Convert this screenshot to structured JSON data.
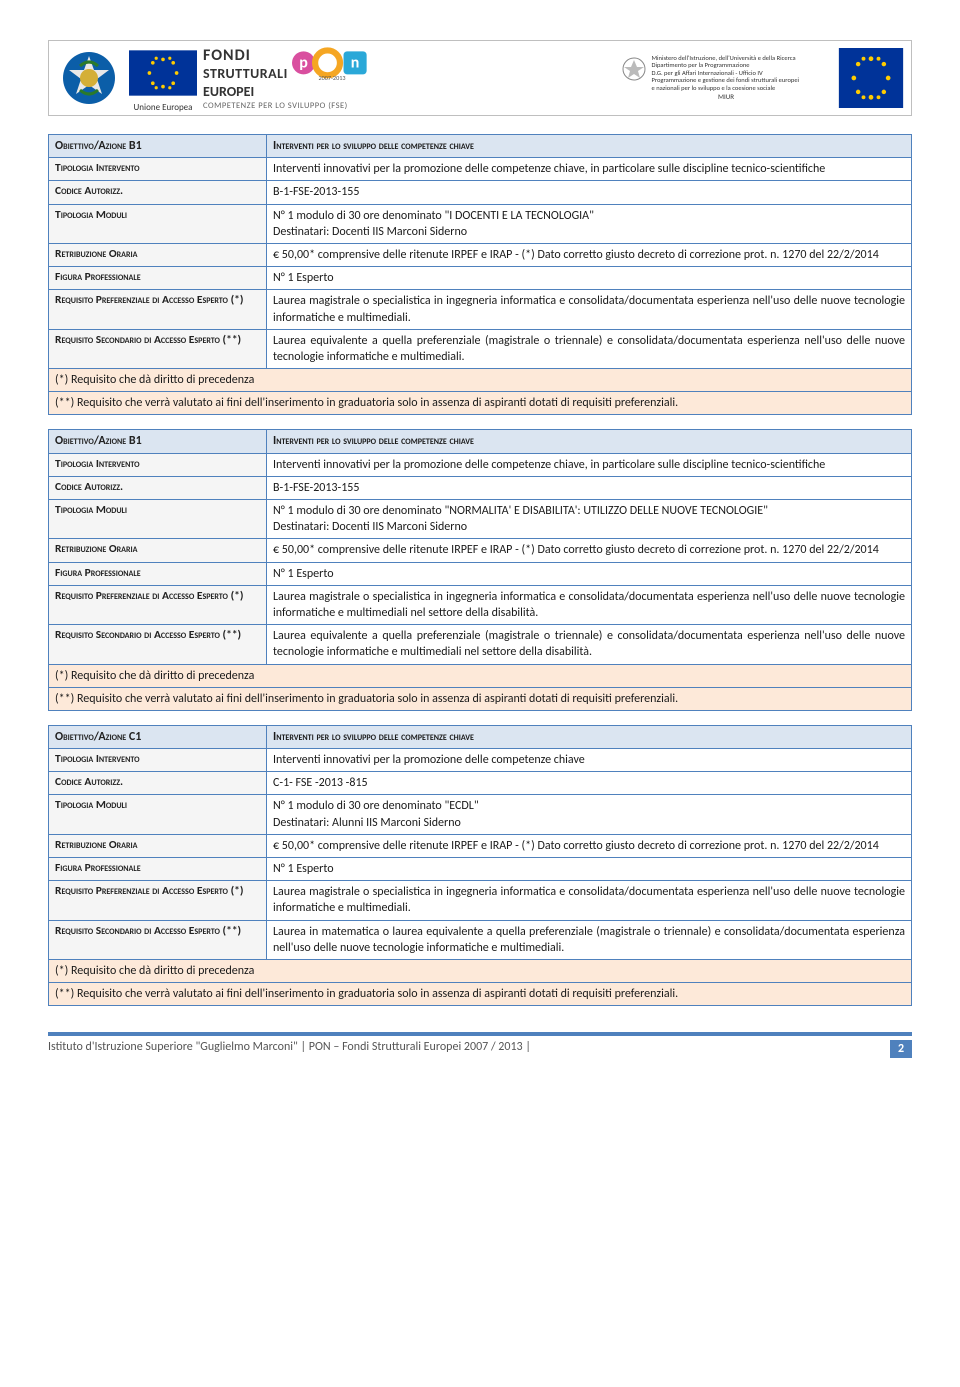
{
  "banner": {
    "eu_label": "Unione Europea",
    "fondi": "FONDI",
    "strutturali": "STRUTTURALI",
    "europei": "EUROPEI",
    "years": "2007-2013",
    "competenze": "COMPETENZE PER LO SVILUPPO (FSE)",
    "miur_line": "MIUR",
    "miur_block": "Ministero dell'Istruzione, dell'Università e della Ricerca\nDipartimento per la Programmazione\nD.G. per gli Affari Internazionali - Ufficio IV\nProgrammazione e gestione dei fondi strutturali europei\ne nazionali per lo sviluppo e la coesione sociale"
  },
  "tables": [
    {
      "title_label": "Obiettivo/Azione B1",
      "title_value": "Interventi per lo sviluppo delle competenze chiave",
      "rows": [
        {
          "label": "Tipologia Intervento",
          "value": "Interventi innovativi per la promozione delle competenze chiave, in particolare sulle discipline tecnico-scientifiche"
        },
        {
          "label": "Codice Autorizz.",
          "value": "B-1-FSE-2013-155"
        },
        {
          "label": "Tipologia Moduli",
          "value": "N° 1 modulo di 30 ore denominato  \"I DOCENTI E LA TECNOLOGIA\"\nDestinatari: Docenti IIS Marconi Siderno"
        },
        {
          "label": "Retribuzione Oraria",
          "value": "€ 50,00* comprensive delle ritenute IRPEF e IRAP - (*) Dato corretto giusto decreto di correzione prot. n. 1270 del  22/2/2014"
        },
        {
          "label": "Figura Professionale",
          "value": "N° 1 Esperto"
        },
        {
          "label": "Requisito Preferenziale di Accesso Esperto (*)",
          "value": "Laurea magistrale o specialistica in ingegneria informatica e consolidata/documentata esperienza nell'uso  delle nuove tecnologie informatiche e multimediali."
        },
        {
          "label": "Requisito Secondario di Accesso Esperto (**)",
          "value": "Laurea equivalente a quella preferenziale (magistrale o triennale) e consolidata/documentata esperienza nell'uso  delle nuove tecnologie informatiche e multimediali."
        }
      ],
      "foot1": "(*)      Requisito che dà diritto di precedenza",
      "foot2": "(**)    Requisito che verrà valutato ai fini dell'inserimento in graduatoria solo in assenza di aspiranti dotati di requisiti preferenziali."
    },
    {
      "title_label": "Obiettivo/Azione B1",
      "title_value": "Interventi per lo sviluppo delle competenze chiave",
      "rows": [
        {
          "label": "Tipologia Intervento",
          "value": "Interventi innovativi per la promozione delle competenze chiave, in particolare sulle discipline tecnico-scientifiche"
        },
        {
          "label": "Codice Autorizz.",
          "value": "B-1-FSE-2013-155"
        },
        {
          "label": "Tipologia Moduli",
          "value": "N° 1 modulo di 30 ore denominato  \"NORMALITA' E DISABILITA': UTILIZZO DELLE NUOVE TECNOLOGIE\"\nDestinatari: Docenti IIS Marconi Siderno"
        },
        {
          "label": "Retribuzione Oraria",
          "value": "€ 50,00* comprensive delle ritenute IRPEF e IRAP - (*) Dato corretto giusto decreto di correzione prot. n. 1270 del  22/2/2014"
        },
        {
          "label": "Figura Professionale",
          "value": "N° 1 Esperto"
        },
        {
          "label": "Requisito Preferenziale di Accesso Esperto (*)",
          "value": "Laurea magistrale o specialistica in ingegneria informatica e consolidata/documentata esperienza nell'uso  delle nuove tecnologie informatiche e multimediali nel settore della disabilità."
        },
        {
          "label": "Requisito Secondario di Accesso Esperto (**)",
          "value": "Laurea equivalente a quella preferenziale (magistrale o triennale) e consolidata/documentata esperienza nell'uso  delle nuove tecnologie informatiche e multimediali nel settore della disabilità."
        }
      ],
      "foot1": "(*)      Requisito che dà diritto di precedenza",
      "foot2": "(**)    Requisito che verrà valutato ai fini dell'inserimento in graduatoria solo in assenza di aspiranti dotati di requisiti preferenziali."
    },
    {
      "title_label": "Obiettivo/Azione C1",
      "title_value": "Interventi per lo sviluppo delle competenze chiave",
      "rows": [
        {
          "label": "Tipologia Intervento",
          "value": "Interventi innovativi per la promozione delle competenze chiave"
        },
        {
          "label": "Codice Autorizz.",
          "value": "C-1- FSE -2013 -815"
        },
        {
          "label": "Tipologia Moduli",
          "value": "N° 1 modulo di 30 ore denominato  \"ECDL\"\nDestinatari: Alunni IIS Marconi Siderno"
        },
        {
          "label": "Retribuzione Oraria",
          "value": "€ 50,00* comprensive delle ritenute IRPEF e IRAP - (*) Dato corretto giusto decreto di correzione prot. n. 1270 del  22/2/2014"
        },
        {
          "label": "Figura Professionale",
          "value": "N° 1 Esperto"
        },
        {
          "label": "Requisito Preferenziale di Accesso Esperto (*)",
          "value": "Laurea magistrale o specialistica in ingegneria informatica e consolidata/documentata esperienza nell'uso  delle nuove tecnologie informatiche e multimediali."
        },
        {
          "label": "Requisito Secondario di Accesso Esperto (**)",
          "value": "Laurea in matematica o laurea equivalente a quella preferenziale (magistrale o triennale) e consolidata/documentata esperienza nell'uso  delle nuove tecnologie informatiche e multimediali."
        }
      ],
      "foot1": "(*)      Requisito che dà diritto di precedenza",
      "foot2": "(**)    Requisito che verrà valutato ai fini dell'inserimento in graduatoria solo in assenza di aspiranti dotati di requisiti preferenziali."
    }
  ],
  "footer": {
    "text": "Istituto d'Istruzione Superiore \"Guglielmo Marconi\" | PON – Fondi Strutturali Europei 2007 / 2013 |",
    "page": "2"
  }
}
